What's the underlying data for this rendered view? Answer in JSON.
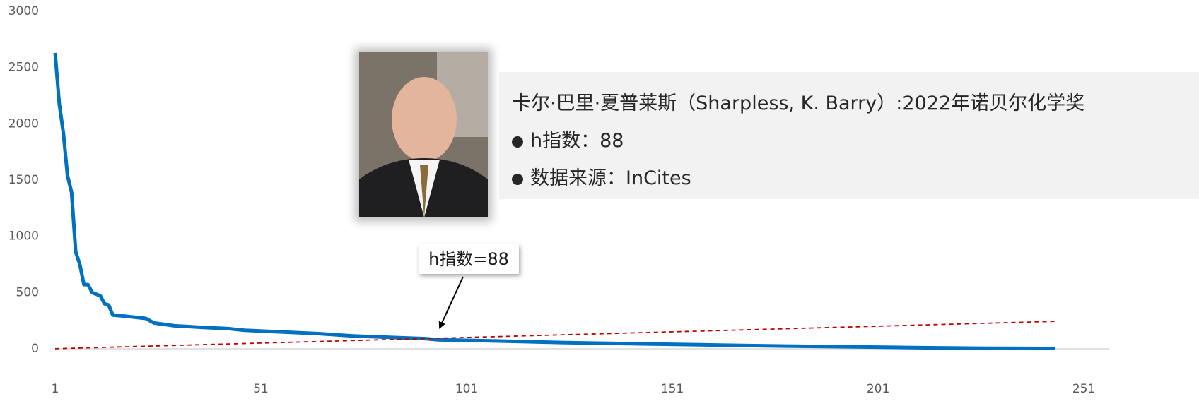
{
  "chart_data": {
    "type": "line",
    "xlim": [
      1,
      257
    ],
    "xticks": [
      1,
      51,
      101,
      151,
      201,
      251
    ],
    "ylim": [
      0,
      3000
    ],
    "yticks": [
      0,
      500,
      1000,
      1500,
      2000,
      2500,
      3000
    ],
    "series": [
      {
        "color": "#0070c0",
        "style": "solid",
        "x": [
          1,
          2,
          3,
          4,
          5,
          6,
          7,
          8,
          9,
          10,
          12,
          13,
          14,
          15,
          18,
          23,
          25,
          30,
          37,
          43,
          47,
          56,
          65,
          73,
          84,
          91,
          94,
          108,
          125,
          142,
          159,
          177,
          194,
          211,
          228,
          244
        ],
        "values": [
          2630,
          2180,
          1920,
          1540,
          1390,
          860,
          750,
          570,
          570,
          500,
          470,
          400,
          390,
          300,
          290,
          270,
          230,
          205,
          190,
          180,
          165,
          150,
          135,
          115,
          100,
          90,
          80,
          70,
          55,
          45,
          35,
          25,
          18,
          10,
          5,
          3
        ]
      },
      {
        "color": "#c00000",
        "style": "dashed",
        "x": [
          1,
          244
        ],
        "values": [
          1,
          244
        ]
      }
    ],
    "annotation": "h指数=88"
  },
  "info": {
    "title": "卡尔·巴里·夏普莱斯（Sharpless, K. Barry）:2022年诺贝尔化学奖",
    "bullets": [
      "h指数：88",
      "数据来源：InCites"
    ]
  }
}
